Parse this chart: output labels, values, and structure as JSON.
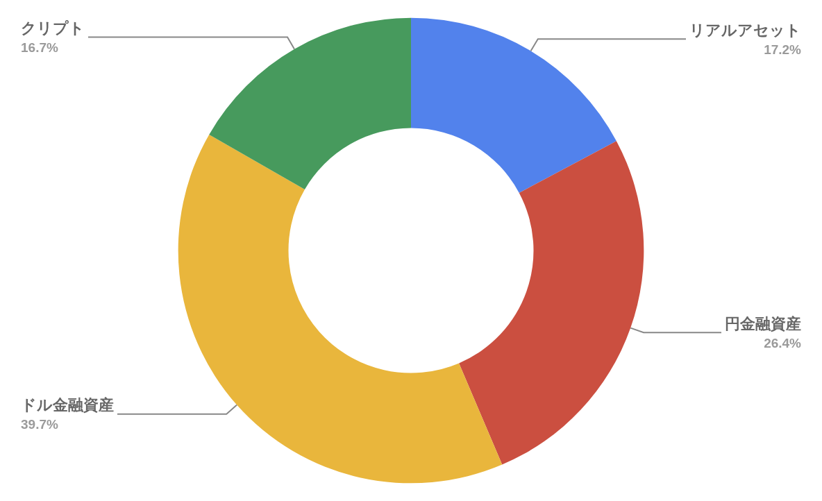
{
  "chart_data": {
    "type": "donut",
    "categories": [
      "リアルアセット",
      "円金融資産",
      "ドル金融資産",
      "クリプト"
    ],
    "values": [
      17.2,
      26.4,
      39.7,
      16.7
    ],
    "value_labels": [
      "17.2%",
      "26.4%",
      "39.7%",
      "16.7%"
    ],
    "colors": [
      "#5282ec",
      "#cb4f40",
      "#e9b63c",
      "#479a5d"
    ],
    "legend": false
  }
}
